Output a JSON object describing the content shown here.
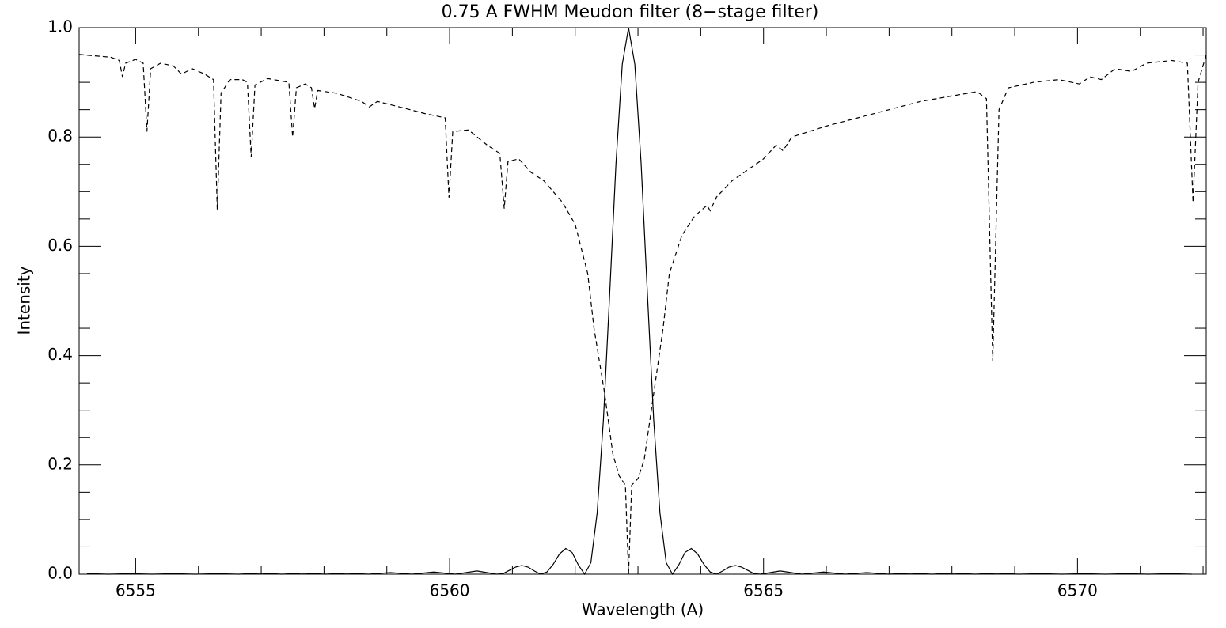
{
  "chart_data": {
    "type": "line",
    "title": "0.75 A FWHM Meudon filter (8−stage filter)",
    "xlabel": "Wavelength (A)",
    "ylabel": "Intensity",
    "xlim": [
      6554.1,
      6572.05
    ],
    "ylim": [
      0,
      1
    ],
    "xticks": [
      6555,
      6560,
      6565,
      6570
    ],
    "xminorticks": [
      6556,
      6557,
      6558,
      6559,
      6561,
      6562,
      6563,
      6564,
      6566,
      6567,
      6568,
      6569,
      6571,
      6572
    ],
    "yticks": [
      {
        "value": 0,
        "label": "0.0"
      },
      0.2,
      0.4,
      0.6,
      0.8,
      {
        "value": 1,
        "label": "1.0"
      }
    ],
    "yminorticks": [
      0.05,
      0.1,
      0.15,
      0.25,
      0.3,
      0.35,
      0.45,
      0.5,
      0.55,
      0.65,
      0.7,
      0.75,
      0.85,
      0.9,
      0.95
    ],
    "series": [
      {
        "color": "#000000",
        "linestyle": "solid",
        "x": [
          6554.225,
          6554.57,
          6554.915,
          6555.26,
          6555.605,
          6555.95,
          6556.295,
          6556.64,
          6556.985,
          6557.33,
          6557.675,
          6558.02,
          6558.365,
          6558.71,
          6559.055,
          6559.4,
          6559.745,
          6560.09,
          6560.435,
          6560.75,
          6560.85,
          6560.95,
          6561.05,
          6561.15,
          6561.25,
          6561.35,
          6561.45,
          6561.55,
          6561.65,
          6561.75,
          6561.85,
          6561.95,
          6562.05,
          6562.15,
          6562.25,
          6562.35,
          6562.45,
          6562.55,
          6562.65,
          6562.75,
          6562.85,
          6562.95,
          6563.05,
          6563.15,
          6563.25,
          6563.35,
          6563.45,
          6563.55,
          6563.65,
          6563.75,
          6563.85,
          6563.95,
          6564.05,
          6564.15,
          6564.25,
          6564.35,
          6564.45,
          6564.55,
          6564.65,
          6564.75,
          6564.85,
          6564.95,
          6565.265,
          6565.61,
          6565.955,
          6566.3,
          6566.645,
          6566.99,
          6567.335,
          6567.68,
          6568.025,
          6568.37,
          6568.715,
          6569.06,
          6569.405,
          6569.75,
          6570.095,
          6570.44,
          6570.785,
          6571.13,
          6571.475,
          6571.82
        ],
        "values": [
          0.001,
          0,
          0.001,
          0,
          0.001,
          0,
          0.001,
          0,
          0.002,
          0,
          0.002,
          0,
          0.002,
          0,
          0.003,
          0,
          0.004,
          0,
          0.006,
          0,
          0.001,
          0.007,
          0.013,
          0.016,
          0.013,
          0.006,
          0,
          0.004,
          0.018,
          0.037,
          0.047,
          0.04,
          0.017,
          0,
          0.021,
          0.112,
          0.283,
          0.514,
          0.752,
          0.933,
          1.0,
          0.933,
          0.752,
          0.514,
          0.283,
          0.112,
          0.021,
          0,
          0.017,
          0.04,
          0.047,
          0.037,
          0.018,
          0.004,
          0,
          0.006,
          0.013,
          0.016,
          0.013,
          0.007,
          0.001,
          0,
          0.006,
          0,
          0.004,
          0,
          0.003,
          0,
          0.002,
          0,
          0.002,
          0,
          0.002,
          0,
          0.001,
          0,
          0.001,
          0,
          0.001,
          0,
          0.001,
          0
        ]
      },
      {
        "color": "#000000",
        "linestyle": "dashed",
        "x": [
          6554.1,
          6554.6,
          6554.74,
          6554.79,
          6554.84,
          6555.0,
          6555.12,
          6555.18,
          6555.24,
          6555.4,
          6555.6,
          6555.73,
          6555.9,
          6556.1,
          6556.24,
          6556.3,
          6556.36,
          6556.5,
          6556.7,
          6556.78,
          6556.84,
          6556.9,
          6557.1,
          6557.44,
          6557.5,
          6557.56,
          6557.7,
          6557.8,
          6557.85,
          6557.9,
          6558.2,
          6558.6,
          6558.72,
          6558.85,
          6559.2,
          6559.6,
          6559.93,
          6559.99,
          6560.05,
          6560.3,
          6560.6,
          6560.8,
          6560.87,
          6560.93,
          6561.1,
          6561.3,
          6561.5,
          6561.8,
          6562.0,
          6562.2,
          6562.3,
          6562.47,
          6562.6,
          6562.7,
          6562.8,
          6562.85,
          6562.9,
          6563.0,
          6563.1,
          6563.25,
          6563.4,
          6563.5,
          6563.7,
          6563.9,
          6564.1,
          6564.15,
          6564.25,
          6564.5,
          6565.0,
          6565.2,
          6565.31,
          6565.45,
          6566.0,
          6566.5,
          6567.0,
          6567.5,
          6568.0,
          6568.4,
          6568.55,
          6568.65,
          6568.75,
          6568.9,
          6569.3,
          6569.7,
          6570.03,
          6570.2,
          6570.38,
          6570.6,
          6570.86,
          6571.1,
          6571.5,
          6571.75,
          6571.84,
          6571.92,
          6572.05
        ],
        "values": [
          0.951,
          0.946,
          0.94,
          0.91,
          0.935,
          0.942,
          0.935,
          0.81,
          0.925,
          0.935,
          0.93,
          0.915,
          0.925,
          0.915,
          0.905,
          0.667,
          0.88,
          0.905,
          0.905,
          0.9,
          0.763,
          0.895,
          0.907,
          0.9,
          0.8,
          0.89,
          0.897,
          0.89,
          0.852,
          0.885,
          0.88,
          0.865,
          0.855,
          0.865,
          0.855,
          0.843,
          0.835,
          0.689,
          0.81,
          0.813,
          0.785,
          0.77,
          0.669,
          0.755,
          0.76,
          0.735,
          0.72,
          0.68,
          0.64,
          0.55,
          0.45,
          0.33,
          0.22,
          0.18,
          0.163,
          0.0,
          0.163,
          0.175,
          0.21,
          0.33,
          0.45,
          0.55,
          0.62,
          0.655,
          0.675,
          0.665,
          0.69,
          0.72,
          0.76,
          0.785,
          0.775,
          0.8,
          0.82,
          0.835,
          0.85,
          0.865,
          0.875,
          0.883,
          0.87,
          0.39,
          0.85,
          0.89,
          0.9,
          0.905,
          0.897,
          0.91,
          0.905,
          0.925,
          0.92,
          0.935,
          0.94,
          0.935,
          0.68,
          0.9,
          0.95
        ]
      }
    ]
  }
}
